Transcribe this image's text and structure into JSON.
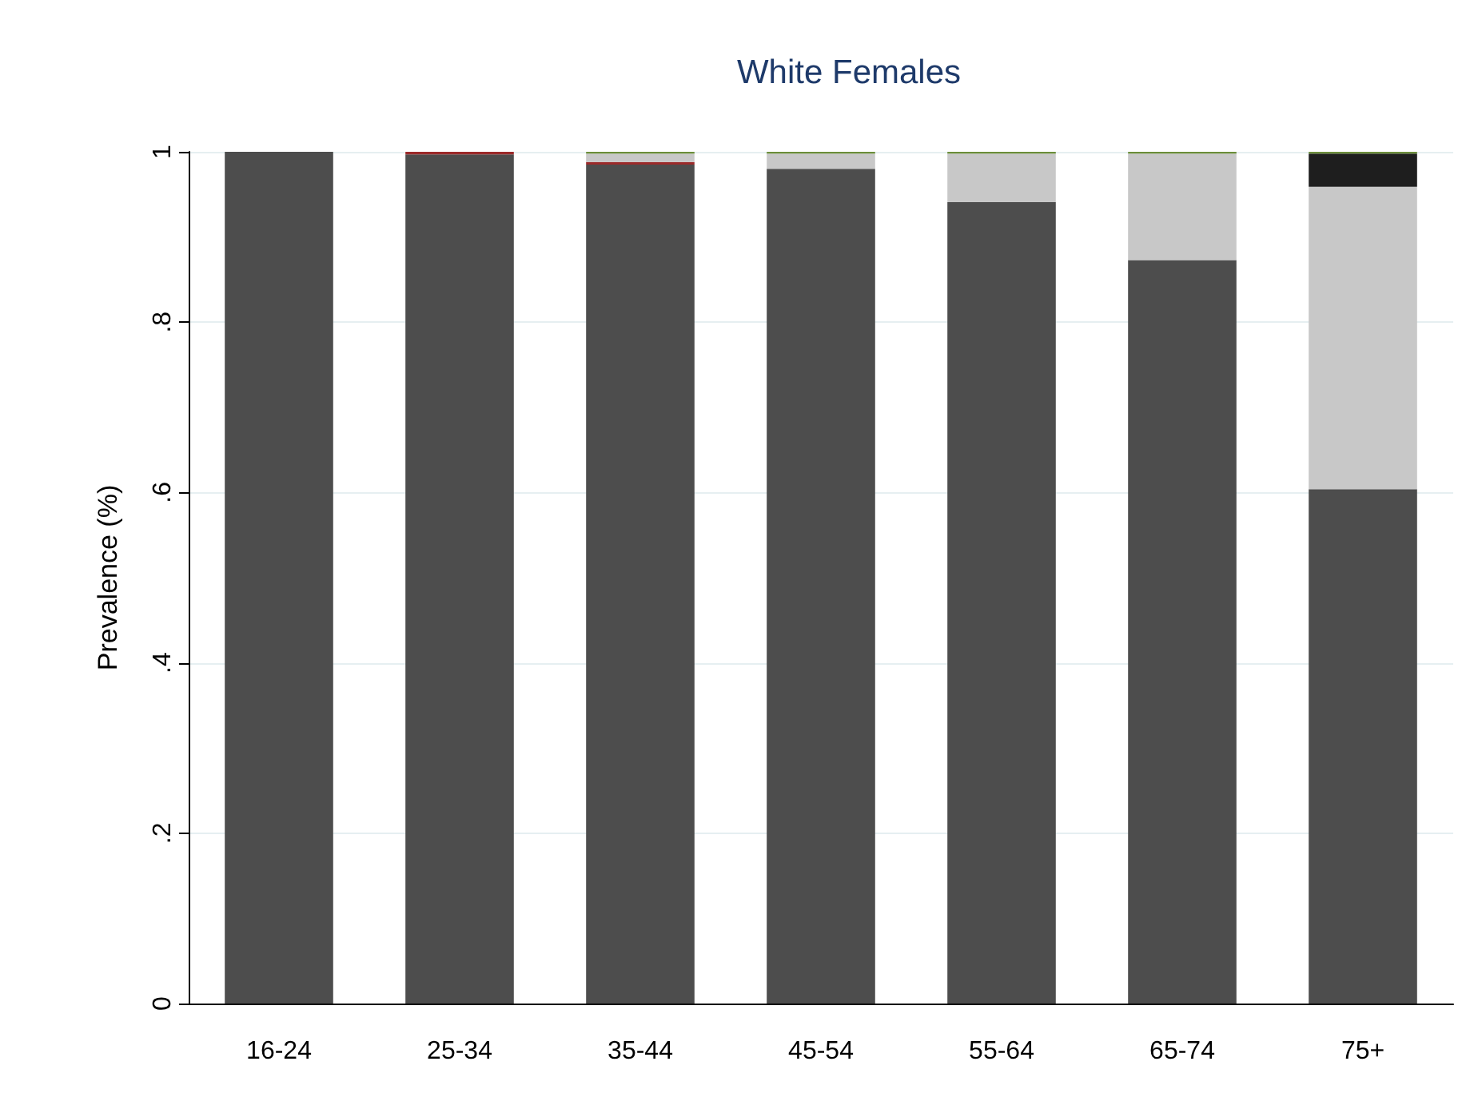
{
  "chart_data": {
    "type": "bar",
    "title": "White Females",
    "ylabel": "Prevalence (%)",
    "stacked": true,
    "grid": "y",
    "categories": [
      "16-24",
      "25-34",
      "35-44",
      "45-54",
      "55-64",
      "65-74",
      "75+"
    ],
    "ylim": [
      0,
      1
    ],
    "yticks": [
      0,
      {
        "value": 0.2,
        "label": ".2"
      },
      {
        "value": 0.4,
        "label": ".4"
      },
      {
        "value": 0.6,
        "label": ".6"
      },
      {
        "value": 0.8,
        "label": ".8"
      },
      1
    ],
    "series": [
      {
        "color": "#4d4d4d",
        "values": [
          1.0,
          0.997,
          0.985,
          0.98,
          0.941,
          0.873,
          0.604
        ]
      },
      {
        "color": "#9b2a2a",
        "values": [
          0,
          0.003,
          0.003,
          0,
          0,
          0,
          0
        ]
      },
      {
        "color": "#c8c8c8",
        "values": [
          0,
          0,
          0.01,
          0.018,
          0.057,
          0.125,
          0.355
        ]
      },
      {
        "color": "#1e1e1e",
        "values": [
          0,
          0,
          0,
          0,
          0,
          0,
          0.039
        ]
      },
      {
        "color": "#6b8e3a",
        "values": [
          0,
          0,
          0.002,
          0.002,
          0.002,
          0.002,
          0.002
        ]
      }
    ]
  }
}
